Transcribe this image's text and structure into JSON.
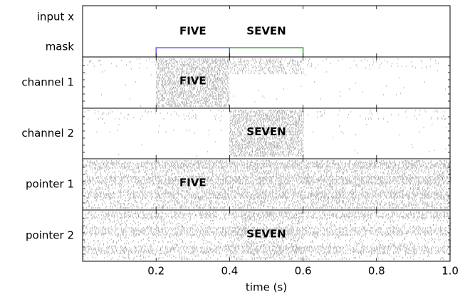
{
  "chart_data": {
    "type": "raster",
    "xlabel": "time (s)",
    "xlim": [
      0,
      1
    ],
    "xticks": [
      0.2,
      0.4,
      0.6,
      0.8,
      {
        "value": 1,
        "label": "1.0"
      }
    ],
    "input_label": "input x",
    "mask_label": "mask",
    "mask": [
      {
        "label": "FIVE",
        "start": 0.2,
        "end": 0.4,
        "color": "#4a4ae0"
      },
      {
        "label": "SEVEN",
        "start": 0.4,
        "end": 0.6,
        "color": "#1a9a1a"
      }
    ],
    "panels": [
      {
        "name": "channel 1",
        "annotation": "FIVE",
        "annotation_x": 0.3
      },
      {
        "name": "channel 2",
        "annotation": "SEVEN",
        "annotation_x": 0.5
      },
      {
        "name": "pointer 1",
        "annotation": "FIVE",
        "annotation_x": 0.3
      },
      {
        "name": "pointer 2",
        "annotation": "SEVEN",
        "annotation_x": 0.5
      }
    ]
  }
}
